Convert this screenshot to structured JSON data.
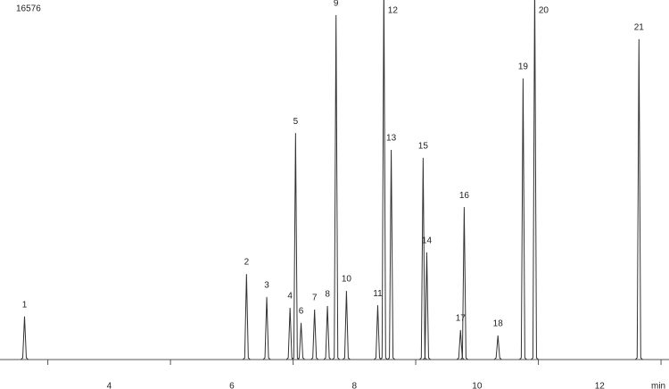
{
  "chart_data": {
    "type": "chromatogram",
    "title": "16576",
    "x_label": "min",
    "xlim": [
      2.22,
      13.13
    ],
    "ylim": [
      0,
      100
    ],
    "xticks": [
      4,
      6,
      8,
      10,
      12
    ],
    "minor_xticks": [
      3,
      5,
      7,
      9,
      11,
      13
    ],
    "color": "#333333",
    "peaks": [
      {
        "label": "1",
        "x": 2.62,
        "height": 12
      },
      {
        "label": "2",
        "x": 6.24,
        "height": 23.8
      },
      {
        "label": "3",
        "x": 6.57,
        "height": 17.4
      },
      {
        "label": "4",
        "x": 6.95,
        "height": 14.4
      },
      {
        "label": "5",
        "x": 7.04,
        "height": 63
      },
      {
        "label": "6",
        "x": 7.13,
        "height": 10.2
      },
      {
        "label": "7",
        "x": 7.35,
        "height": 13.9
      },
      {
        "label": "8",
        "x": 7.56,
        "height": 14.9
      },
      {
        "label": "9",
        "x": 7.7,
        "height": 95.8
      },
      {
        "label": "10",
        "x": 7.87,
        "height": 19.1
      },
      {
        "label": "11",
        "x": 8.38,
        "height": 15.1
      },
      {
        "label": "12",
        "x": 8.48,
        "height": 105
      },
      {
        "label": "13",
        "x": 8.6,
        "height": 58.3
      },
      {
        "label": "14",
        "x": 9.18,
        "height": 29.8
      },
      {
        "label": "15",
        "x": 9.12,
        "height": 56.1
      },
      {
        "label": "16",
        "x": 9.79,
        "height": 42.4
      },
      {
        "label": "17",
        "x": 9.73,
        "height": 8.2
      },
      {
        "label": "18",
        "x": 10.34,
        "height": 6.7
      },
      {
        "label": "19",
        "x": 10.75,
        "height": 78.2
      },
      {
        "label": "20",
        "x": 10.94,
        "height": 105
      },
      {
        "label": "21",
        "x": 12.64,
        "height": 89.1
      }
    ]
  }
}
